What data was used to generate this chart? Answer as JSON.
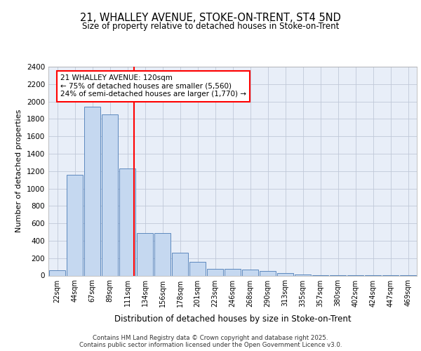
{
  "title1": "21, WHALLEY AVENUE, STOKE-ON-TRENT, ST4 5ND",
  "title2": "Size of property relative to detached houses in Stoke-on-Trent",
  "xlabel": "Distribution of detached houses by size in Stoke-on-Trent",
  "ylabel": "Number of detached properties",
  "categories": [
    "22sqm",
    "44sqm",
    "67sqm",
    "89sqm",
    "111sqm",
    "134sqm",
    "156sqm",
    "178sqm",
    "201sqm",
    "223sqm",
    "246sqm",
    "268sqm",
    "290sqm",
    "313sqm",
    "335sqm",
    "357sqm",
    "380sqm",
    "402sqm",
    "424sqm",
    "447sqm",
    "469sqm"
  ],
  "values": [
    60,
    1160,
    1940,
    1850,
    1230,
    490,
    490,
    265,
    155,
    80,
    75,
    65,
    50,
    30,
    10,
    5,
    5,
    2,
    2,
    1,
    1
  ],
  "bar_color": "#c5d8f0",
  "bar_edge_color": "#4a7ab5",
  "grid_color": "#c0c8d8",
  "background_color": "#e8eef8",
  "annotation_line1": "21 WHALLEY AVENUE: 120sqm",
  "annotation_line2": "← 75% of detached houses are smaller (5,560)",
  "annotation_line3": "24% of semi-detached houses are larger (1,770) →",
  "annotation_box_color": "white",
  "annotation_box_edge": "red",
  "ylim": [
    0,
    2400
  ],
  "yticks": [
    0,
    200,
    400,
    600,
    800,
    1000,
    1200,
    1400,
    1600,
    1800,
    2000,
    2200,
    2400
  ],
  "footer": "Contains HM Land Registry data © Crown copyright and database right 2025.\nContains public sector information licensed under the Open Government Licence v3.0."
}
